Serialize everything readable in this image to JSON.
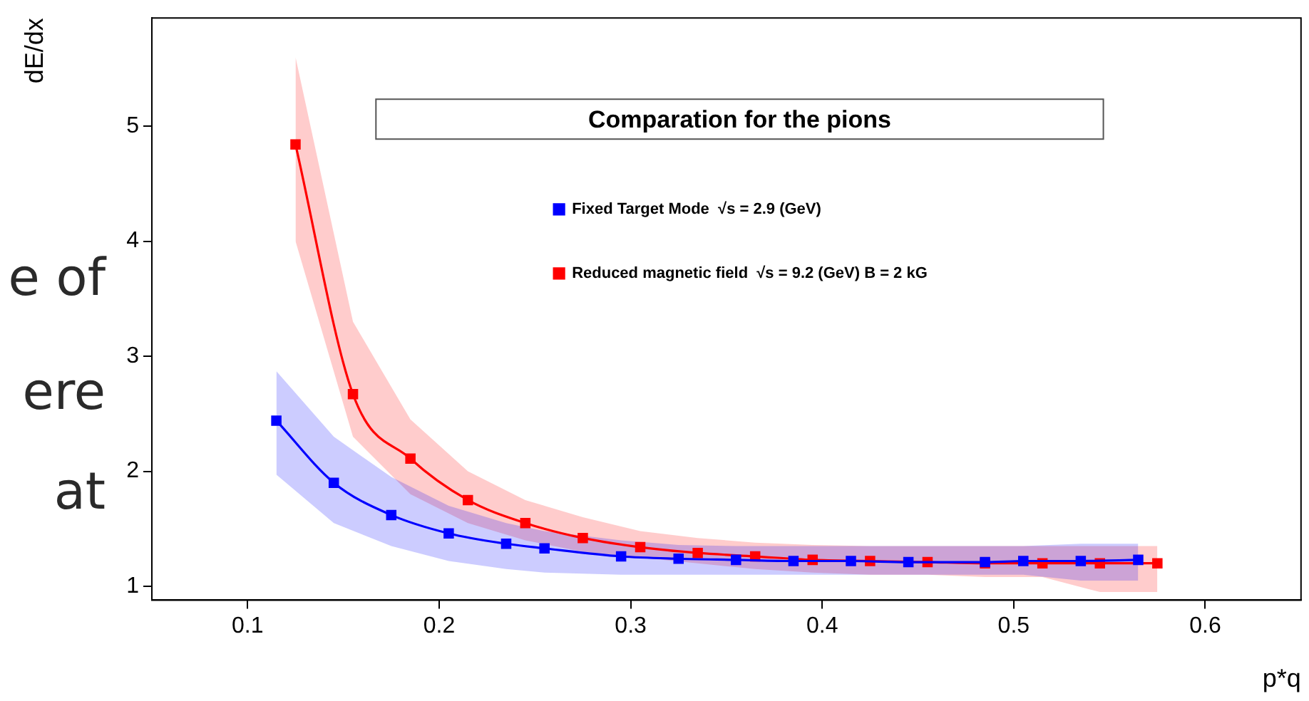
{
  "chart_data": {
    "type": "line",
    "title": "Comparation for the pions",
    "xlabel": "p*q",
    "ylabel": "dE/dx",
    "xlim": [
      0.05,
      0.65
    ],
    "xticks": [
      0.1,
      0.2,
      0.3,
      0.4,
      0.5,
      0.6
    ],
    "ylim": [
      0.88,
      5.94
    ],
    "yticks": [
      1,
      2,
      3,
      4,
      5
    ],
    "grid": false,
    "legend": "top",
    "marker": "square",
    "line_style": "solid",
    "annotations": [
      "e of",
      "ere",
      "at"
    ],
    "series": [
      {
        "name": "Fixed Target Mode  √s = 2.9 (GeV)",
        "color": "#0000ff",
        "x": [
          0.115,
          0.145,
          0.175,
          0.205,
          0.235,
          0.255,
          0.295,
          0.325,
          0.355,
          0.385,
          0.415,
          0.445,
          0.485,
          0.505,
          0.535,
          0.565
        ],
        "values": [
          2.44,
          1.9,
          1.62,
          1.46,
          1.37,
          1.33,
          1.26,
          1.24,
          1.23,
          1.22,
          1.22,
          1.21,
          1.21,
          1.22,
          1.22,
          1.23
        ],
        "lower": [
          1.97,
          1.55,
          1.35,
          1.22,
          1.15,
          1.12,
          1.1,
          1.1,
          1.1,
          1.1,
          1.1,
          1.1,
          1.1,
          1.1,
          1.05,
          1.05
        ],
        "upper": [
          2.87,
          2.3,
          1.95,
          1.7,
          1.55,
          1.48,
          1.4,
          1.36,
          1.35,
          1.35,
          1.35,
          1.35,
          1.35,
          1.35,
          1.37,
          1.37
        ]
      },
      {
        "name": "Reduced magnetic field  √s = 9.2 (GeV) B = 2 kG",
        "color": "#ff0000",
        "x": [
          0.125,
          0.155,
          0.185,
          0.215,
          0.245,
          0.275,
          0.305,
          0.335,
          0.365,
          0.395,
          0.425,
          0.455,
          0.485,
          0.515,
          0.545,
          0.575
        ],
        "values": [
          4.84,
          2.67,
          2.11,
          1.75,
          1.55,
          1.42,
          1.34,
          1.29,
          1.26,
          1.23,
          1.22,
          1.21,
          1.2,
          1.2,
          1.2,
          1.2
        ],
        "lower": [
          4.0,
          2.3,
          1.8,
          1.55,
          1.4,
          1.3,
          1.25,
          1.2,
          1.15,
          1.12,
          1.1,
          1.1,
          1.08,
          1.08,
          0.95,
          0.95
        ],
        "upper": [
          5.6,
          3.3,
          2.45,
          2.0,
          1.75,
          1.6,
          1.48,
          1.42,
          1.38,
          1.36,
          1.35,
          1.35,
          1.35,
          1.35,
          1.35,
          1.35
        ]
      }
    ]
  }
}
